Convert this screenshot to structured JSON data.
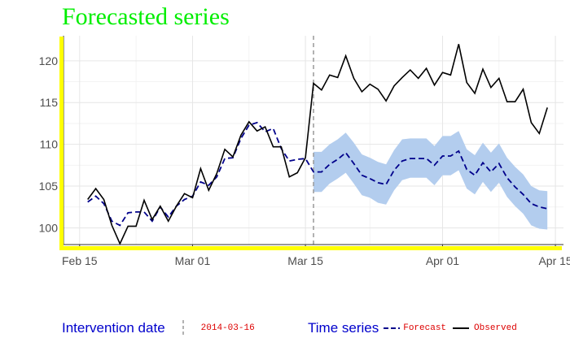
{
  "chart_data": {
    "type": "line",
    "title": "Forecasted series",
    "xlabel": "",
    "ylabel": "",
    "x_range": [
      "2014-02-13",
      "2014-04-16"
    ],
    "ylim": [
      98,
      123
    ],
    "x_ticks": [
      {
        "date": "2014-02-15",
        "label": "Feb 15"
      },
      {
        "date": "2014-03-01",
        "label": "Mar 01"
      },
      {
        "date": "2014-03-15",
        "label": "Mar 15"
      },
      {
        "date": "2014-04-01",
        "label": "Apr 01"
      },
      {
        "date": "2014-04-15",
        "label": "Apr 15"
      }
    ],
    "y_ticks": [
      100,
      105,
      110,
      115,
      120
    ],
    "grid": true,
    "intervention_date": "2014-03-16",
    "colors": {
      "forecast": "#00008b",
      "observed": "#000000",
      "band": "#b3cdee",
      "intervention": "#999999",
      "frame": "#ffff00",
      "title": "#00ee00"
    },
    "series": [
      {
        "name": "Observed",
        "x": [
          "2014-02-16",
          "2014-02-17",
          "2014-02-18",
          "2014-02-19",
          "2014-02-20",
          "2014-02-21",
          "2014-02-22",
          "2014-02-23",
          "2014-02-24",
          "2014-02-25",
          "2014-02-26",
          "2014-02-27",
          "2014-02-28",
          "2014-03-01",
          "2014-03-02",
          "2014-03-03",
          "2014-03-04",
          "2014-03-05",
          "2014-03-06",
          "2014-03-07",
          "2014-03-08",
          "2014-03-09",
          "2014-03-10",
          "2014-03-11",
          "2014-03-12",
          "2014-03-13",
          "2014-03-14",
          "2014-03-15",
          "2014-03-16",
          "2014-03-17",
          "2014-03-18",
          "2014-03-19",
          "2014-03-20",
          "2014-03-21",
          "2014-03-22",
          "2014-03-23",
          "2014-03-24",
          "2014-03-25",
          "2014-03-26",
          "2014-03-27",
          "2014-03-28",
          "2014-03-29",
          "2014-03-30",
          "2014-03-31",
          "2014-04-01",
          "2014-04-02",
          "2014-04-03",
          "2014-04-04",
          "2014-04-05",
          "2014-04-06",
          "2014-04-07",
          "2014-04-08",
          "2014-04-09",
          "2014-04-10",
          "2014-04-11",
          "2014-04-12",
          "2014-04-13",
          "2014-04-14"
        ],
        "values": [
          103.4,
          104.7,
          103.4,
          100.3,
          98.1,
          100.2,
          100.2,
          103.3,
          101.0,
          102.6,
          100.8,
          102.6,
          104.1,
          103.6,
          107.1,
          104.5,
          106.5,
          109.4,
          108.5,
          111.1,
          112.7,
          111.6,
          112.1,
          109.7,
          109.7,
          106.1,
          106.6,
          108.4,
          117.3,
          116.5,
          118.3,
          118.0,
          120.6,
          117.9,
          116.3,
          117.2,
          116.6,
          115.2,
          117.0,
          118.0,
          118.9,
          117.9,
          119.1,
          117.1,
          118.6,
          118.3,
          122.0,
          117.4,
          116.1,
          119.0,
          116.8,
          117.9,
          115.1,
          115.1,
          116.6,
          112.6,
          111.3,
          114.4
        ]
      },
      {
        "name": "Forecast",
        "x": [
          "2014-02-16",
          "2014-02-17",
          "2014-02-18",
          "2014-02-19",
          "2014-02-20",
          "2014-02-21",
          "2014-02-22",
          "2014-02-23",
          "2014-02-24",
          "2014-02-25",
          "2014-02-26",
          "2014-02-27",
          "2014-02-28",
          "2014-03-01",
          "2014-03-02",
          "2014-03-03",
          "2014-03-04",
          "2014-03-05",
          "2014-03-06",
          "2014-03-07",
          "2014-03-08",
          "2014-03-09",
          "2014-03-10",
          "2014-03-11",
          "2014-03-12",
          "2014-03-13",
          "2014-03-14",
          "2014-03-15",
          "2014-03-16",
          "2014-03-17",
          "2014-03-18",
          "2014-03-19",
          "2014-03-20",
          "2014-03-21",
          "2014-03-22",
          "2014-03-23",
          "2014-03-24",
          "2014-03-25",
          "2014-03-26",
          "2014-03-27",
          "2014-03-28",
          "2014-03-29",
          "2014-03-30",
          "2014-03-31",
          "2014-04-01",
          "2014-04-02",
          "2014-04-03",
          "2014-04-04",
          "2014-04-05",
          "2014-04-06",
          "2014-04-07",
          "2014-04-08",
          "2014-04-09",
          "2014-04-10",
          "2014-04-11",
          "2014-04-12",
          "2014-04-13",
          "2014-04-14"
        ],
        "values": [
          103.1,
          103.8,
          102.9,
          100.8,
          100.3,
          101.8,
          101.9,
          101.9,
          100.8,
          102.5,
          101.3,
          102.6,
          103.4,
          103.8,
          105.5,
          105.1,
          106.1,
          108.3,
          108.4,
          110.7,
          112.3,
          112.6,
          111.5,
          111.9,
          109.5,
          108.0,
          108.2,
          108.3,
          106.7,
          106.7,
          107.6,
          108.2,
          109.0,
          107.7,
          106.3,
          105.9,
          105.4,
          105.2,
          106.9,
          108.0,
          108.3,
          108.3,
          108.3,
          107.5,
          108.6,
          108.6,
          109.2,
          107.0,
          106.3,
          107.8,
          106.7,
          107.7,
          106.0,
          104.9,
          104.0,
          102.9,
          102.5,
          102.3
        ],
        "band_x": [
          "2014-03-16",
          "2014-03-17",
          "2014-03-18",
          "2014-03-19",
          "2014-03-20",
          "2014-03-21",
          "2014-03-22",
          "2014-03-23",
          "2014-03-24",
          "2014-03-25",
          "2014-03-26",
          "2014-03-27",
          "2014-03-28",
          "2014-03-29",
          "2014-03-30",
          "2014-03-31",
          "2014-04-01",
          "2014-04-02",
          "2014-04-03",
          "2014-04-04",
          "2014-04-05",
          "2014-04-06",
          "2014-04-07",
          "2014-04-08",
          "2014-04-09",
          "2014-04-10",
          "2014-04-11",
          "2014-04-12",
          "2014-04-13",
          "2014-04-14"
        ],
        "band_lower": [
          104.3,
          104.3,
          105.3,
          105.9,
          106.6,
          105.3,
          103.9,
          103.6,
          103.0,
          102.8,
          104.5,
          105.7,
          106.0,
          106.0,
          106.0,
          105.1,
          106.3,
          106.3,
          106.9,
          104.7,
          104.0,
          105.5,
          104.3,
          105.4,
          103.7,
          102.6,
          101.7,
          100.3,
          99.9,
          99.8
        ],
        "band_upper": [
          109.1,
          109.1,
          110.0,
          110.6,
          111.4,
          110.2,
          108.8,
          108.4,
          107.9,
          107.6,
          109.3,
          110.6,
          110.7,
          110.7,
          110.7,
          109.8,
          111.0,
          111.0,
          111.6,
          109.4,
          108.7,
          110.2,
          109.0,
          110.1,
          108.4,
          107.3,
          106.4,
          105.0,
          104.5,
          104.4
        ]
      }
    ]
  },
  "legend": {
    "intervention_title": "Intervention date",
    "intervention_value": "2014-03-16",
    "series_title": "Time series",
    "forecast_label": "Forecast",
    "observed_label": "Observed"
  }
}
